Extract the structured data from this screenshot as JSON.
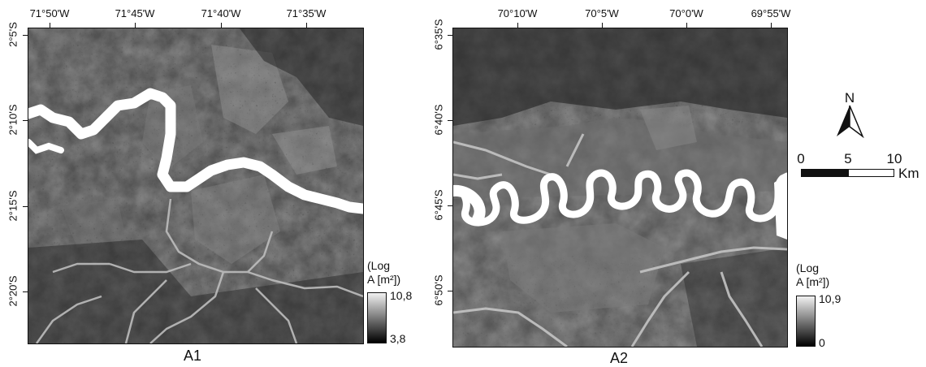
{
  "panels": [
    {
      "id": "A1",
      "title": "A1",
      "lon_ticks": [
        "71°50'W",
        "71°45'W",
        "71°40'W",
        "71°35'W"
      ],
      "lat_ticks": [
        "2°5'S",
        "2°10'S",
        "2°15'S",
        "2°20'S"
      ],
      "legend_title_line1": "(Log",
      "legend_title_line2": "A [m²])",
      "legend_max": "10,8",
      "legend_min": "3,8"
    },
    {
      "id": "A2",
      "title": "A2",
      "lon_ticks": [
        "70°10'W",
        "70°5'W",
        "70°0'W",
        "69°55'W"
      ],
      "lat_ticks": [
        "6°35'S",
        "6°40'S",
        "6°45'S",
        "6°50'S"
      ],
      "legend_title_line1": "(Log",
      "legend_title_line2": "A [m²])",
      "legend_max": "10,9",
      "legend_min": "0"
    }
  ],
  "north_arrow": {
    "label": "N"
  },
  "scale_bar": {
    "labels": [
      "0",
      "5",
      "10"
    ],
    "unit": "Km"
  },
  "colors": {
    "river": "#ffffff",
    "terrain_dark": "#1e1e1e",
    "terrain_mid": "#5a5a5a",
    "terrain_light": "#9a9a9a"
  }
}
